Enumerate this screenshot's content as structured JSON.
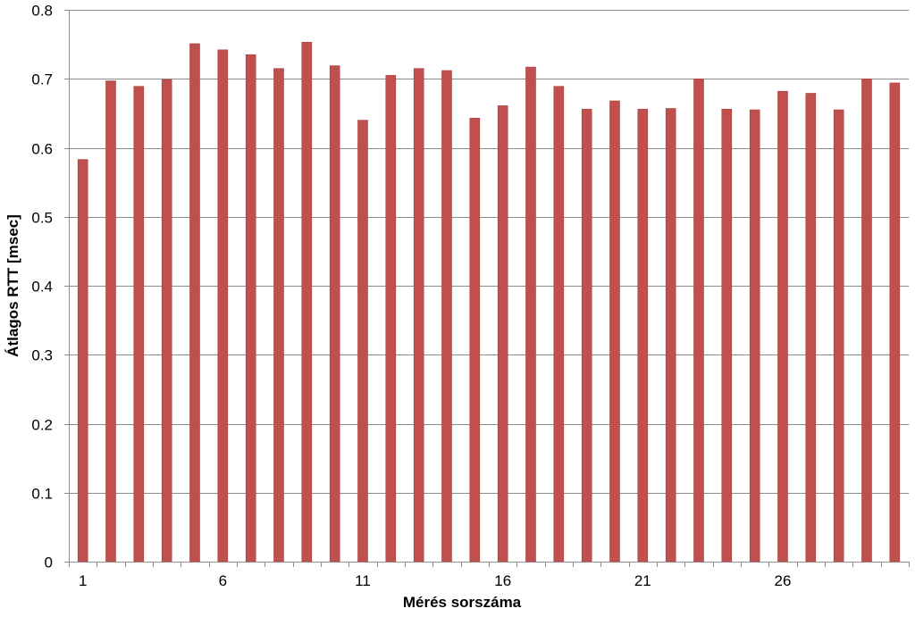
{
  "chart_data": {
    "type": "bar",
    "title": "",
    "xlabel": "Mérés sorszáma",
    "ylabel": "Átlagos RTT [msec]",
    "ylim": [
      0,
      0.8
    ],
    "yticks": [
      "0",
      "0.1",
      "0.2",
      "0.3",
      "0.4",
      "0.5",
      "0.6",
      "0.7",
      "0.8"
    ],
    "x_tick_labels": [
      "1",
      "6",
      "11",
      "16",
      "21",
      "26"
    ],
    "x_tick_positions": [
      1,
      6,
      11,
      16,
      21,
      26
    ],
    "categories": [
      1,
      2,
      3,
      4,
      5,
      6,
      7,
      8,
      9,
      10,
      11,
      12,
      13,
      14,
      15,
      16,
      17,
      18,
      19,
      20,
      21,
      22,
      23,
      24,
      25,
      26,
      27,
      28,
      29,
      30
    ],
    "values": [
      0.583,
      0.697,
      0.689,
      0.699,
      0.751,
      0.742,
      0.735,
      0.715,
      0.753,
      0.719,
      0.64,
      0.705,
      0.715,
      0.712,
      0.643,
      0.661,
      0.717,
      0.689,
      0.656,
      0.668,
      0.656,
      0.657,
      0.7,
      0.656,
      0.655,
      0.682,
      0.679,
      0.655,
      0.7,
      0.694
    ],
    "grid": true,
    "legend": "none",
    "bar_color": "#c0504d",
    "bar_stroke_color": "#a9403d",
    "grid_color": "#8c8c8c"
  }
}
